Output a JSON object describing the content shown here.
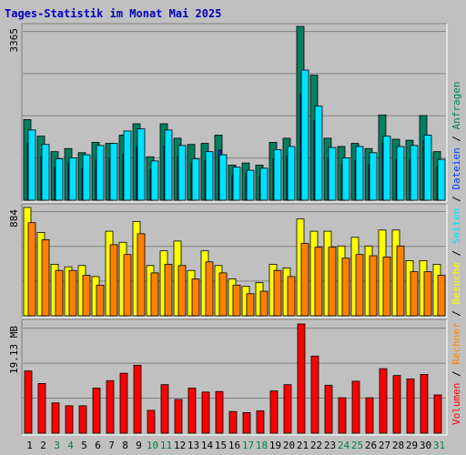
{
  "chart_data": {
    "type": "bar",
    "title": "Tages-Statistik im Monat Mai 2025",
    "x": [
      "1",
      "2",
      "3",
      "4",
      "5",
      "6",
      "7",
      "8",
      "9",
      "10",
      "11",
      "12",
      "13",
      "14",
      "15",
      "16",
      "17",
      "18",
      "19",
      "20",
      "21",
      "22",
      "23",
      "24",
      "25",
      "26",
      "27",
      "28",
      "29",
      "30",
      "31"
    ],
    "weekend_days": [
      "3",
      "4",
      "10",
      "11",
      "17",
      "18",
      "24",
      "25",
      "31"
    ],
    "colors": {
      "weekday_tick": "#000000",
      "weekend_tick": "#008040",
      "anfragen": "#008060",
      "dateien": "#0040ff",
      "seiten": "#00e0ff",
      "besuche": "#ffff00",
      "rechner": "#ff8000",
      "volumen": "#ff0000",
      "title": "#0000c0"
    },
    "panels": [
      {
        "id": "requests",
        "ymax_label": "3365",
        "ylim": [
          0,
          3365
        ],
        "series": [
          {
            "name": "Anfragen",
            "color": "#008060",
            "values": [
              1560,
              1240,
              940,
              1000,
              920,
              1120,
              1100,
              1260,
              1480,
              840,
              1480,
              1200,
              1080,
              1100,
              1260,
              680,
              720,
              680,
              1120,
              1200,
              3365,
              2420,
              1200,
              1040,
              1100,
              1000,
              1650,
              1180,
              1160,
              1640,
              940
            ]
          },
          {
            "name": "Dateien",
            "color": "#0040ff",
            "values": [
              1100,
              850,
              630,
              720,
              620,
              800,
              820,
              900,
              1030,
              600,
              1050,
              840,
              710,
              770,
              970,
              480,
              520,
              470,
              800,
              850,
              2050,
              1550,
              820,
              700,
              770,
              690,
              1100,
              790,
              780,
              1150,
              650
            ]
          },
          {
            "name": "Seiten",
            "color": "#00e0ff",
            "values": [
              1360,
              1080,
              800,
              820,
              880,
              1060,
              1100,
              1340,
              1380,
              760,
              1360,
              1060,
              800,
              940,
              880,
              640,
              580,
              620,
              980,
              1040,
              2520,
              1820,
              1020,
              820,
              1040,
              920,
              1240,
              1040,
              1060,
              1260,
              790
            ]
          }
        ]
      },
      {
        "id": "visits",
        "ymax_label": "884",
        "ylim": [
          0,
          884
        ],
        "series": [
          {
            "name": "Besuche",
            "color": "#ffff00",
            "values": [
              884,
              680,
              420,
              400,
              410,
              320,
              690,
              600,
              770,
              410,
              530,
              610,
              370,
              530,
              410,
              300,
              240,
              270,
              420,
              390,
              790,
              690,
              690,
              570,
              640,
              570,
              700,
              700,
              450,
              450,
              420
            ]
          },
          {
            "name": "Rechner",
            "color": "#ff8000",
            "values": [
              760,
              620,
              370,
              370,
              330,
              250,
              580,
              500,
              670,
              350,
              420,
              410,
              300,
              440,
              350,
              250,
              180,
              200,
              370,
              320,
              590,
              560,
              560,
              470,
              500,
              490,
              480,
              570,
              360,
              360,
              330
            ]
          }
        ]
      },
      {
        "id": "volume",
        "ymax_label": "19.13 MB",
        "ylim": [
          0,
          19.13
        ],
        "series": [
          {
            "name": "Volumen",
            "color": "#ff0000",
            "values": [
              10.9,
              8.7,
              5.3,
              4.8,
              4.8,
              7.9,
              9.2,
              10.5,
              11.9,
              4.0,
              8.5,
              5.9,
              7.9,
              7.2,
              7.3,
              3.8,
              3.6,
              3.9,
              7.4,
              8.5,
              19.13,
              13.5,
              8.4,
              6.2,
              9.1,
              6.2,
              11.3,
              10.1,
              9.5,
              10.3,
              6.7
            ]
          }
        ]
      }
    ],
    "legend_order": [
      "Volumen",
      "Rechner",
      "Besuche",
      "Seiten",
      "Dateien",
      "Anfragen"
    ],
    "legend_separator": "/",
    "legend_placement": "right-vertical",
    "grid": true
  }
}
